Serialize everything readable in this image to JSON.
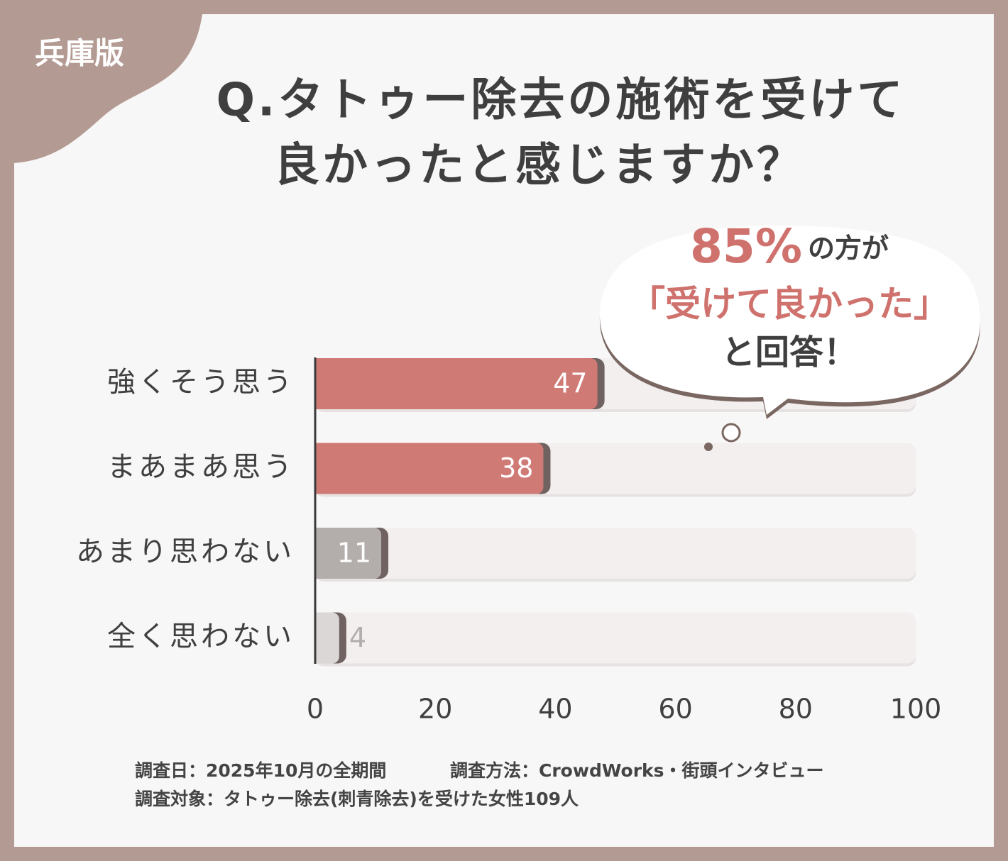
{
  "edition": "兵庫版",
  "chart_data": {
    "type": "barh",
    "title": [
      "Q.タトゥー除去の施術を受けて",
      "良かったと感じますか？"
    ],
    "categories": [
      "強くそう思う",
      "まあまあ思う",
      "あまり思わない",
      "全く思わない"
    ],
    "values": [
      47,
      38,
      11,
      4
    ],
    "colors": [
      "#d07a76",
      "#d07a76",
      "#b3adab",
      "#dad7d6"
    ],
    "track_color": "#f2efee",
    "xlim": [
      0,
      100
    ],
    "xticks": [
      0,
      20,
      40,
      60,
      80,
      100
    ],
    "callout": {
      "highlight": "85%",
      "line1_rest": "の方が",
      "line2": "「受けて良かった」",
      "line3": "と回答！"
    }
  },
  "footer": {
    "date": "調査日：2025年10月の全期間",
    "method": "調査方法：CrowdWorks・街頭インタビュー",
    "target": "調査対象：タトゥー除去(刺青除去)を受けた女性109人"
  }
}
